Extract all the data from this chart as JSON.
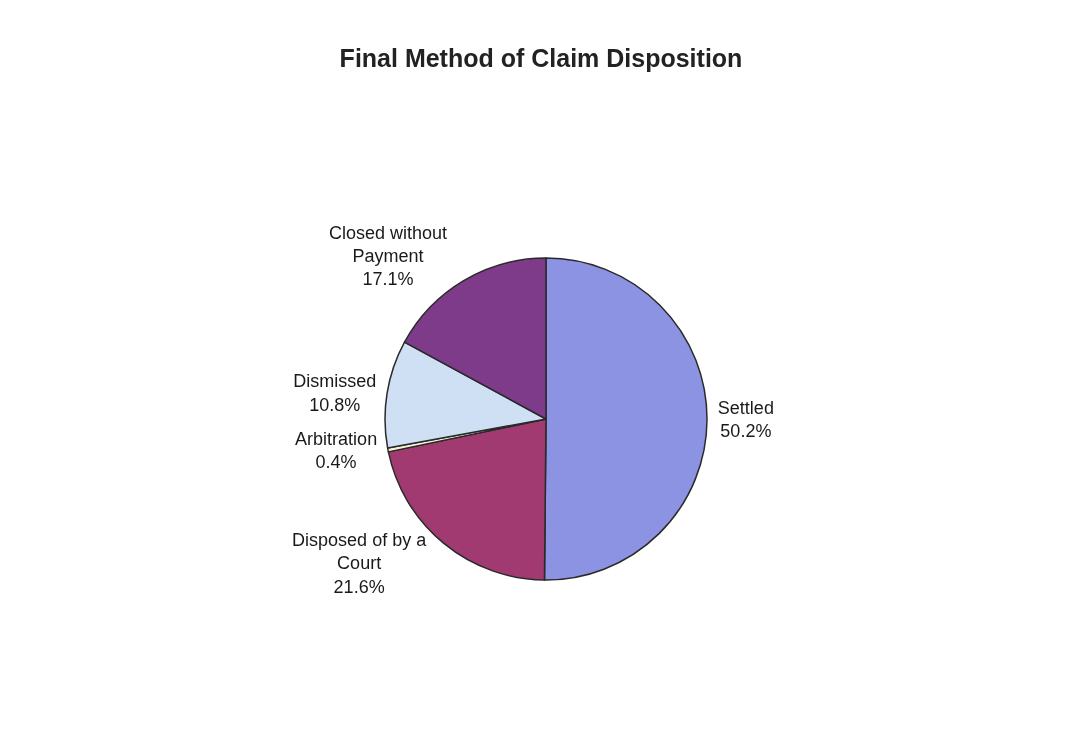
{
  "chart_data": {
    "type": "pie",
    "title": "Final Method of Claim Disposition",
    "categories": [
      "Settled",
      "Disposed of by a Court",
      "Arbitration",
      "Dismissed",
      "Closed without Payment"
    ],
    "values": [
      50.2,
      21.6,
      0.4,
      10.8,
      17.1
    ],
    "value_labels": [
      "50.2%",
      "21.6%",
      "0.4%",
      "10.8%",
      "17.1%"
    ],
    "colors": [
      "#8c93e2",
      "#a23a72",
      "#f4f2d6",
      "#cfe0f4",
      "#7e3b8a"
    ]
  }
}
